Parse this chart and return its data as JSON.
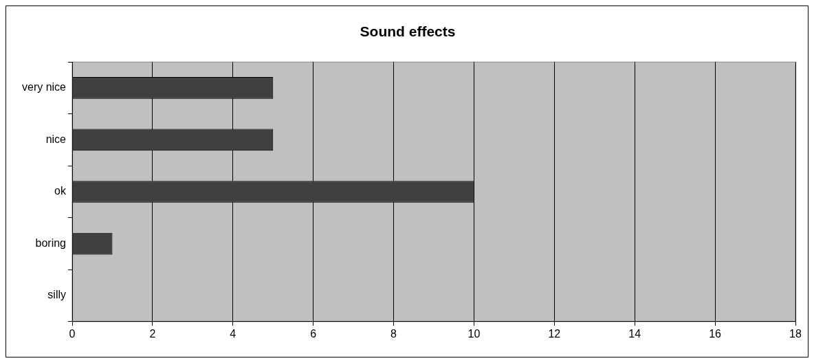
{
  "chart_data": {
    "type": "bar",
    "orientation": "horizontal",
    "title": "Sound effects",
    "categories": [
      "very nice",
      "nice",
      "ok",
      "boring",
      "silly"
    ],
    "values": [
      5,
      5,
      10,
      1,
      0
    ],
    "color": "#404040",
    "xlim": [
      0,
      18
    ],
    "xticks": [
      0,
      2,
      4,
      6,
      8,
      10,
      12,
      14,
      16,
      18
    ],
    "grid": "x",
    "legend": false
  }
}
